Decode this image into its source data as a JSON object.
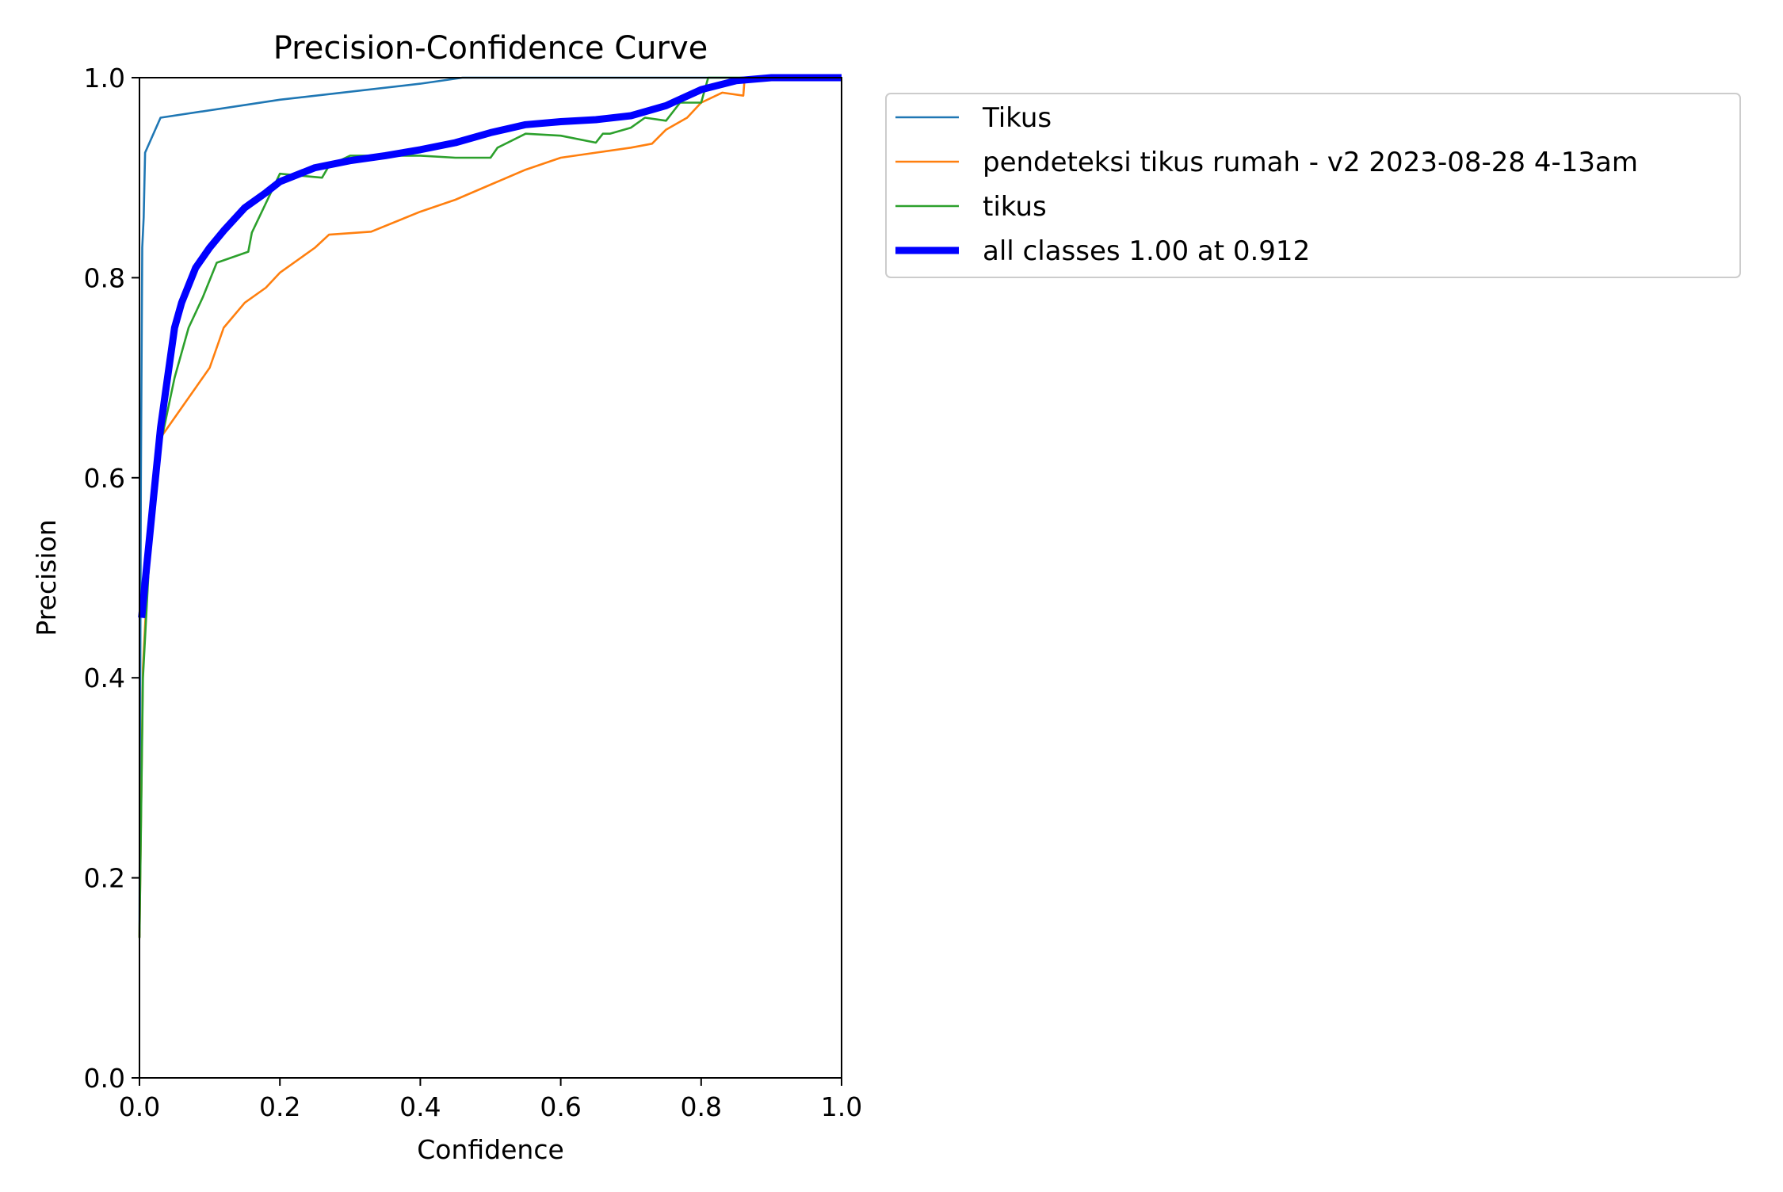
{
  "chart_data": {
    "type": "line",
    "title": "Precision-Confidence Curve",
    "xlabel": "Confidence",
    "ylabel": "Precision",
    "xlim": [
      0,
      1
    ],
    "ylim": [
      0,
      1
    ],
    "xticks": [
      "0.0",
      "0.2",
      "0.4",
      "0.6",
      "0.8",
      "1.0"
    ],
    "yticks": [
      "0.0",
      "0.2",
      "0.4",
      "0.6",
      "0.8",
      "1.0"
    ],
    "grid": false,
    "legend_position": "outside-upper-right",
    "series": [
      {
        "name": "Tikus",
        "color": "#1f77b4",
        "width": "thin",
        "points": [
          [
            0.0,
            0.14
          ],
          [
            0.002,
            0.6
          ],
          [
            0.004,
            0.83
          ],
          [
            0.006,
            0.86
          ],
          [
            0.008,
            0.925
          ],
          [
            0.03,
            0.96
          ],
          [
            0.2,
            0.978
          ],
          [
            0.4,
            0.994
          ],
          [
            0.46,
            1.0
          ],
          [
            1.0,
            1.0
          ]
        ]
      },
      {
        "name": "pendeteksi tikus rumah - v2 2023-08-28 4-13am",
        "color": "#ff7f0e",
        "width": "thin",
        "points": [
          [
            0.0,
            0.14
          ],
          [
            0.005,
            0.41
          ],
          [
            0.015,
            0.55
          ],
          [
            0.03,
            0.64
          ],
          [
            0.05,
            0.66
          ],
          [
            0.08,
            0.69
          ],
          [
            0.1,
            0.71
          ],
          [
            0.12,
            0.75
          ],
          [
            0.15,
            0.775
          ],
          [
            0.18,
            0.79
          ],
          [
            0.2,
            0.805
          ],
          [
            0.25,
            0.83
          ],
          [
            0.27,
            0.843
          ],
          [
            0.33,
            0.846
          ],
          [
            0.4,
            0.866
          ],
          [
            0.45,
            0.878
          ],
          [
            0.5,
            0.893
          ],
          [
            0.55,
            0.908
          ],
          [
            0.6,
            0.92
          ],
          [
            0.65,
            0.925
          ],
          [
            0.7,
            0.93
          ],
          [
            0.73,
            0.934
          ],
          [
            0.75,
            0.948
          ],
          [
            0.78,
            0.96
          ],
          [
            0.8,
            0.975
          ],
          [
            0.83,
            0.985
          ],
          [
            0.86,
            0.982
          ],
          [
            0.862,
            1.0
          ],
          [
            1.0,
            1.0
          ]
        ]
      },
      {
        "name": "tikus",
        "color": "#2ca02c",
        "width": "thin",
        "points": [
          [
            0.0,
            0.14
          ],
          [
            0.005,
            0.4
          ],
          [
            0.02,
            0.6
          ],
          [
            0.05,
            0.7
          ],
          [
            0.07,
            0.75
          ],
          [
            0.09,
            0.78
          ],
          [
            0.11,
            0.815
          ],
          [
            0.155,
            0.826
          ],
          [
            0.16,
            0.845
          ],
          [
            0.2,
            0.904
          ],
          [
            0.26,
            0.9
          ],
          [
            0.27,
            0.912
          ],
          [
            0.3,
            0.922
          ],
          [
            0.4,
            0.922
          ],
          [
            0.45,
            0.92
          ],
          [
            0.5,
            0.92
          ],
          [
            0.51,
            0.93
          ],
          [
            0.55,
            0.944
          ],
          [
            0.6,
            0.942
          ],
          [
            0.65,
            0.935
          ],
          [
            0.66,
            0.944
          ],
          [
            0.67,
            0.944
          ],
          [
            0.7,
            0.95
          ],
          [
            0.72,
            0.96
          ],
          [
            0.75,
            0.957
          ],
          [
            0.77,
            0.975
          ],
          [
            0.8,
            0.975
          ],
          [
            0.81,
            1.0
          ],
          [
            1.0,
            1.0
          ]
        ]
      },
      {
        "name": "all classes 1.00 at 0.912",
        "color": "#0000ff",
        "width": "thick",
        "points": [
          [
            0.003,
            0.46
          ],
          [
            0.01,
            0.51
          ],
          [
            0.02,
            0.58
          ],
          [
            0.03,
            0.65
          ],
          [
            0.04,
            0.7
          ],
          [
            0.05,
            0.75
          ],
          [
            0.06,
            0.775
          ],
          [
            0.08,
            0.81
          ],
          [
            0.1,
            0.83
          ],
          [
            0.12,
            0.847
          ],
          [
            0.15,
            0.87
          ],
          [
            0.18,
            0.885
          ],
          [
            0.2,
            0.896
          ],
          [
            0.25,
            0.91
          ],
          [
            0.3,
            0.917
          ],
          [
            0.35,
            0.922
          ],
          [
            0.4,
            0.928
          ],
          [
            0.45,
            0.935
          ],
          [
            0.5,
            0.945
          ],
          [
            0.55,
            0.953
          ],
          [
            0.6,
            0.956
          ],
          [
            0.65,
            0.958
          ],
          [
            0.7,
            0.962
          ],
          [
            0.75,
            0.972
          ],
          [
            0.8,
            0.988
          ],
          [
            0.85,
            0.997
          ],
          [
            0.9,
            1.0
          ],
          [
            1.0,
            1.0
          ]
        ]
      }
    ]
  }
}
